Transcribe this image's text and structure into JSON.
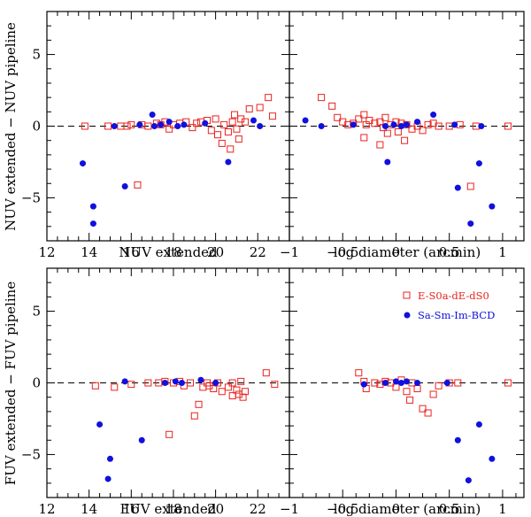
{
  "colors": {
    "early": "#e8231e",
    "late": "#1010e0"
  },
  "legend": [
    {
      "name": "E-S0a-dE-dS0",
      "marker": "open-square",
      "color": "#e8231e"
    },
    {
      "name": "Sa-Sm-Im-BCD",
      "marker": "filled-circle",
      "color": "#1010e0"
    }
  ],
  "ylabels": {
    "top": "NUV extended − NUV pipeline",
    "bottom": "FUV extended − FUV pipeline"
  },
  "chart_data": [
    {
      "id": "nuv-mag",
      "type": "scatter",
      "xlabel": "NUV extended",
      "ylabel": "NUV extended − NUV pipeline",
      "xlim": [
        12,
        23.5
      ],
      "ylim": [
        -8,
        8
      ],
      "xticks": [
        12,
        14,
        16,
        18,
        20,
        22
      ],
      "yticks": [
        -5,
        0,
        5
      ],
      "yticks_labeled": true,
      "series": [
        {
          "name": "E-S0a-dE-dS0",
          "points": [
            [
              13.8,
              0
            ],
            [
              14.9,
              0
            ],
            [
              15.5,
              0
            ],
            [
              15.8,
              0
            ],
            [
              16,
              0.1
            ],
            [
              16.3,
              -4.1
            ],
            [
              16.5,
              0.1
            ],
            [
              16.8,
              0
            ],
            [
              17.2,
              0.2
            ],
            [
              17.4,
              0.1
            ],
            [
              17.6,
              0.3
            ],
            [
              17.8,
              -0.2
            ],
            [
              18,
              0.1
            ],
            [
              18.3,
              0.2
            ],
            [
              18.6,
              0.3
            ],
            [
              18.9,
              -0.1
            ],
            [
              19.1,
              0.2
            ],
            [
              19.3,
              0.3
            ],
            [
              19.6,
              0.4
            ],
            [
              19.8,
              -0.3
            ],
            [
              20,
              0.5
            ],
            [
              20.1,
              -0.6
            ],
            [
              20.3,
              -1.2
            ],
            [
              20.4,
              0.1
            ],
            [
              20.6,
              -0.4
            ],
            [
              20.8,
              0.3
            ],
            [
              20.9,
              0.8
            ],
            [
              21,
              -0.2
            ],
            [
              21.2,
              0.5
            ],
            [
              21.4,
              0.3
            ],
            [
              21.6,
              1.2
            ],
            [
              22.1,
              1.3
            ],
            [
              22.5,
              2
            ],
            [
              22.7,
              0.7
            ],
            [
              20.7,
              -1.6
            ],
            [
              21.1,
              -0.9
            ]
          ]
        },
        {
          "name": "Sa-Sm-Im-BCD",
          "points": [
            [
              13.7,
              -2.6
            ],
            [
              14.2,
              -5.6
            ],
            [
              14.2,
              -6.8
            ],
            [
              15.2,
              0
            ],
            [
              15.7,
              -4.2
            ],
            [
              16.4,
              0.1
            ],
            [
              17,
              0.8
            ],
            [
              17.1,
              0
            ],
            [
              17.4,
              0.1
            ],
            [
              17.8,
              0.3
            ],
            [
              18.2,
              0
            ],
            [
              18.5,
              0.1
            ],
            [
              19.5,
              0.2
            ],
            [
              20.6,
              -2.5
            ],
            [
              21.8,
              0.4
            ],
            [
              22.1,
              0
            ]
          ]
        }
      ]
    },
    {
      "id": "nuv-diam",
      "type": "scatter",
      "xlabel": "log diameter (arcmin)",
      "ylabel": "",
      "xlim": [
        -1,
        1.2
      ],
      "ylim": [
        -8,
        8
      ],
      "xticks": [
        -1,
        -0.5,
        0,
        0.5,
        1
      ],
      "yticks": [
        -5,
        0,
        5
      ],
      "yticks_labeled": false,
      "series": [
        {
          "name": "E-S0a-dE-dS0",
          "points": [
            [
              -0.7,
              2
            ],
            [
              -0.6,
              1.4
            ],
            [
              -0.55,
              0.6
            ],
            [
              -0.5,
              0.3
            ],
            [
              -0.45,
              0.1
            ],
            [
              -0.4,
              0.2
            ],
            [
              -0.35,
              0.5
            ],
            [
              -0.3,
              0.8
            ],
            [
              -0.28,
              0.1
            ],
            [
              -0.25,
              0.4
            ],
            [
              -0.2,
              0.2
            ],
            [
              -0.15,
              0.3
            ],
            [
              -0.12,
              -0.1
            ],
            [
              -0.1,
              0.6
            ],
            [
              -0.08,
              -0.5
            ],
            [
              -0.05,
              0.1
            ],
            [
              0,
              0.3
            ],
            [
              0.02,
              -0.4
            ],
            [
              0.05,
              0.2
            ],
            [
              0.08,
              -1
            ],
            [
              0.1,
              0.1
            ],
            [
              0.15,
              -0.2
            ],
            [
              0.2,
              0
            ],
            [
              0.25,
              -0.3
            ],
            [
              0.3,
              0.1
            ],
            [
              0.35,
              0.2
            ],
            [
              0.4,
              0
            ],
            [
              0.5,
              0
            ],
            [
              0.6,
              0.1
            ],
            [
              0.75,
              0
            ],
            [
              0.7,
              -4.2
            ],
            [
              1.05,
              0
            ],
            [
              -0.15,
              -1.3
            ],
            [
              -0.3,
              -0.8
            ]
          ]
        },
        {
          "name": "Sa-Sm-Im-BCD",
          "points": [
            [
              -0.85,
              0.4
            ],
            [
              -0.7,
              0
            ],
            [
              -0.4,
              0.1
            ],
            [
              -0.1,
              0
            ],
            [
              -0.08,
              -2.5
            ],
            [
              -0.02,
              0.1
            ],
            [
              0.05,
              0
            ],
            [
              0.1,
              0.1
            ],
            [
              0.2,
              0.3
            ],
            [
              0.35,
              0.8
            ],
            [
              0.55,
              0.1
            ],
            [
              0.58,
              -4.3
            ],
            [
              0.7,
              -6.8
            ],
            [
              0.78,
              -2.6
            ],
            [
              0.9,
              -5.6
            ],
            [
              0.8,
              0
            ]
          ]
        }
      ]
    },
    {
      "id": "fuv-mag",
      "type": "scatter",
      "xlabel": "FUV extended",
      "ylabel": "FUV extended − FUV pipeline",
      "xlim": [
        12,
        23.5
      ],
      "ylim": [
        -8,
        8
      ],
      "xticks": [
        12,
        14,
        16,
        18,
        20,
        22
      ],
      "yticks": [
        -5,
        0,
        5
      ],
      "yticks_labeled": true,
      "series": [
        {
          "name": "E-S0a-dE-dS0",
          "points": [
            [
              14.3,
              -0.2
            ],
            [
              15.2,
              -0.3
            ],
            [
              16,
              -0.1
            ],
            [
              16.8,
              0
            ],
            [
              17.3,
              0
            ],
            [
              17.6,
              0.1
            ],
            [
              17.8,
              -3.6
            ],
            [
              18,
              0
            ],
            [
              18.3,
              0.1
            ],
            [
              18.5,
              -0.2
            ],
            [
              18.8,
              0
            ],
            [
              19,
              -2.3
            ],
            [
              19.4,
              -0.3
            ],
            [
              19.6,
              0
            ],
            [
              19.7,
              -0.2
            ],
            [
              19.9,
              -0.4
            ],
            [
              20.1,
              0
            ],
            [
              20.3,
              -0.6
            ],
            [
              20.6,
              -0.3
            ],
            [
              20.8,
              0
            ],
            [
              21,
              -0.5
            ],
            [
              21.1,
              -0.8
            ],
            [
              21.2,
              0.1
            ],
            [
              21.3,
              -1
            ],
            [
              21.4,
              -0.6
            ],
            [
              22.4,
              0.7
            ],
            [
              22.8,
              -0.1
            ],
            [
              19.2,
              -1.5
            ],
            [
              20.8,
              -0.9
            ]
          ]
        },
        {
          "name": "Sa-Sm-Im-BCD",
          "points": [
            [
              14.5,
              -2.9
            ],
            [
              15,
              -5.3
            ],
            [
              14.9,
              -6.7
            ],
            [
              15.7,
              0.1
            ],
            [
              16.5,
              -4
            ],
            [
              17.6,
              0
            ],
            [
              18.1,
              0.1
            ],
            [
              18.4,
              0
            ],
            [
              19.3,
              0.2
            ],
            [
              20,
              0
            ]
          ]
        }
      ]
    },
    {
      "id": "fuv-diam",
      "type": "scatter",
      "xlabel": "log diameter (arcmin)",
      "ylabel": "",
      "xlim": [
        -1,
        1.2
      ],
      "ylim": [
        -8,
        8
      ],
      "xticks": [
        -1,
        -0.5,
        0,
        0.5,
        1
      ],
      "yticks": [
        -5,
        0,
        5
      ],
      "yticks_labeled": false,
      "series": [
        {
          "name": "E-S0a-dE-dS0",
          "points": [
            [
              -0.35,
              0.7
            ],
            [
              -0.3,
              0.1
            ],
            [
              -0.2,
              0
            ],
            [
              -0.15,
              -0.1
            ],
            [
              -0.1,
              0.1
            ],
            [
              -0.05,
              0
            ],
            [
              0,
              -0.3
            ],
            [
              0.05,
              0.2
            ],
            [
              0.1,
              -0.6
            ],
            [
              0.15,
              0
            ],
            [
              0.2,
              -0.4
            ],
            [
              0.25,
              -1.8
            ],
            [
              0.3,
              -2.1
            ],
            [
              0.35,
              -0.8
            ],
            [
              0.4,
              -0.2
            ],
            [
              0.5,
              0
            ],
            [
              0.58,
              0
            ],
            [
              1.05,
              0
            ],
            [
              -0.28,
              -0.4
            ],
            [
              0.13,
              -1.2
            ]
          ]
        },
        {
          "name": "Sa-Sm-Im-BCD",
          "points": [
            [
              -0.3,
              -0.1
            ],
            [
              -0.1,
              0
            ],
            [
              0,
              0.1
            ],
            [
              0.05,
              0
            ],
            [
              0.1,
              0.1
            ],
            [
              0.2,
              0
            ],
            [
              0.48,
              0
            ],
            [
              0.58,
              -4
            ],
            [
              0.68,
              -6.8
            ],
            [
              0.78,
              -2.9
            ],
            [
              0.9,
              -5.3
            ]
          ]
        }
      ]
    }
  ]
}
